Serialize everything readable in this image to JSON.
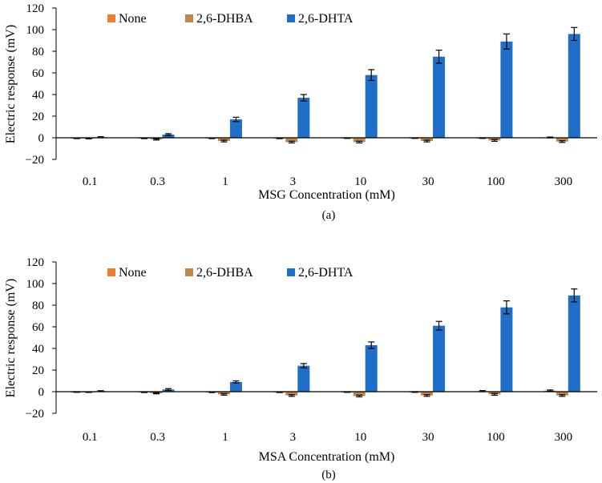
{
  "colors": {
    "None": "#ed7d31",
    "2,6-DHBA": "#c0864a",
    "2,6-DHTA": "#1f6fc8"
  },
  "chart_data": [
    {
      "type": "bar",
      "panel_label": "(a)",
      "xlabel": "MSG Concentration (mM)",
      "ylabel": "Electric response (mV)",
      "ylim": [
        -20,
        120
      ],
      "yticks": [
        -20,
        0,
        20,
        40,
        60,
        80,
        100,
        120
      ],
      "grid": false,
      "legend_position": "top-left",
      "categories": [
        "0.1",
        "0.3",
        "1",
        "3",
        "10",
        "30",
        "100",
        "300"
      ],
      "series": [
        {
          "name": "None",
          "values": [
            -0.5,
            -0.5,
            -0.5,
            -0.5,
            -0.3,
            -0.3,
            -0.3,
            0.3
          ],
          "errors": [
            0.3,
            0.3,
            0.3,
            0.3,
            0.3,
            0.3,
            0.3,
            0.4
          ]
        },
        {
          "name": "2,6-DHBA",
          "values": [
            -0.6,
            -1.5,
            -3,
            -4,
            -4,
            -3,
            -2.5,
            -3.5
          ],
          "errors": [
            0.4,
            0.6,
            0.8,
            0.8,
            0.8,
            0.8,
            0.8,
            0.8
          ]
        },
        {
          "name": "2,6-DHTA",
          "values": [
            0.5,
            3,
            17,
            37,
            58,
            75,
            89,
            96
          ],
          "errors": [
            0.5,
            0.8,
            2,
            3,
            5,
            6,
            7,
            6
          ]
        }
      ]
    },
    {
      "type": "bar",
      "panel_label": "(b)",
      "xlabel": "MSA Concentration (mM)",
      "ylabel": "Electric response (mV)",
      "ylim": [
        -20,
        120
      ],
      "yticks": [
        -20,
        0,
        20,
        40,
        60,
        80,
        100,
        120
      ],
      "grid": false,
      "legend_position": "top-left",
      "categories": [
        "0.1",
        "0.3",
        "1",
        "3",
        "10",
        "30",
        "100",
        "300"
      ],
      "series": [
        {
          "name": "None",
          "values": [
            -0.3,
            -0.5,
            -0.5,
            -0.5,
            -0.3,
            -0.3,
            0.5,
            1
          ],
          "errors": [
            0.3,
            0.3,
            0.3,
            0.3,
            0.3,
            0.3,
            0.5,
            0.6
          ]
        },
        {
          "name": "2,6-DHBA",
          "values": [
            -0.4,
            -1.5,
            -2.5,
            -3.5,
            -4,
            -3.5,
            -2.5,
            -3.5
          ],
          "errors": [
            0.3,
            0.5,
            0.7,
            0.8,
            0.8,
            0.8,
            0.8,
            0.8
          ]
        },
        {
          "name": "2,6-DHTA",
          "values": [
            0.5,
            2,
            9,
            24,
            43,
            61,
            78,
            89
          ],
          "errors": [
            0.4,
            0.8,
            1,
            2,
            3,
            4,
            6,
            6
          ]
        }
      ]
    }
  ]
}
